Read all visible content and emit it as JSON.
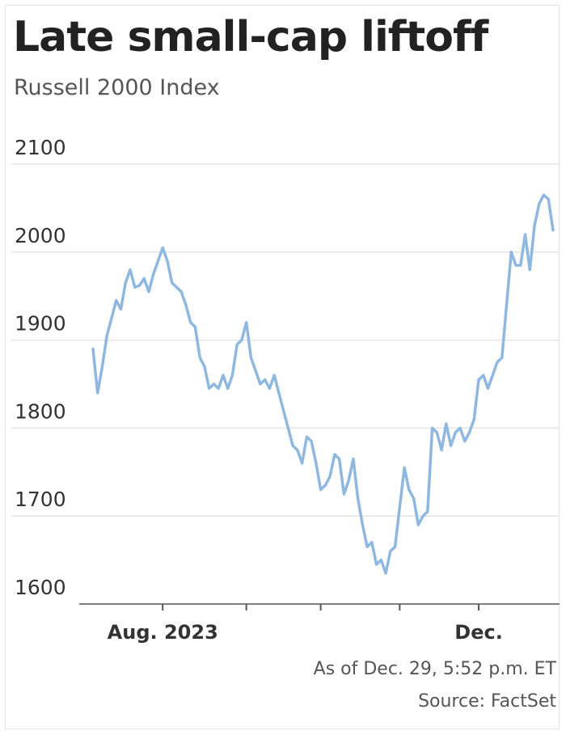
{
  "title": "Late small-cap liftoff",
  "subtitle": "Russell 2000 Index",
  "footnote": "As of Dec. 29, 5:52 p.m. ET",
  "source": "Source: FactSet",
  "colors": {
    "line": "#8fb8e0",
    "grid": "#e5e5e5",
    "axis": "#555555",
    "text": "#333333"
  },
  "chart_data": {
    "type": "line",
    "title": "Late small-cap liftoff",
    "subtitle": "Russell 2000 Index",
    "xlabel": "",
    "ylabel": "",
    "ylim": [
      1600,
      2100
    ],
    "yticks": [
      1600,
      1700,
      1800,
      1900,
      2000,
      2100
    ],
    "x_tick_labels": [
      {
        "label": "Aug. 2023",
        "index": 15
      },
      {
        "label": "Dec.",
        "index": 83
      }
    ],
    "x_minor_ticks": [
      33,
      49,
      66
    ],
    "grid": true,
    "series": [
      {
        "values": [
          1890,
          1840,
          1870,
          1905,
          1925,
          1945,
          1935,
          1965,
          1980,
          1960,
          1962,
          1970,
          1955,
          1975,
          1990,
          2005,
          1990,
          1965,
          1960,
          1955,
          1940,
          1920,
          1915,
          1880,
          1870,
          1845,
          1850,
          1845,
          1860,
          1845,
          1860,
          1895,
          1900,
          1920,
          1880,
          1865,
          1850,
          1855,
          1845,
          1860,
          1840,
          1820,
          1800,
          1780,
          1775,
          1760,
          1790,
          1785,
          1760,
          1730,
          1735,
          1745,
          1770,
          1765,
          1725,
          1740,
          1765,
          1720,
          1690,
          1665,
          1670,
          1645,
          1650,
          1635,
          1660,
          1665,
          1710,
          1755,
          1730,
          1720,
          1690,
          1700,
          1705,
          1800,
          1795,
          1775,
          1805,
          1780,
          1795,
          1800,
          1785,
          1795,
          1810,
          1855,
          1860,
          1845,
          1860,
          1875,
          1880,
          1940,
          2000,
          1985,
          1985,
          2020,
          1980,
          2030,
          2055,
          2065,
          2060,
          2025
        ]
      }
    ]
  }
}
